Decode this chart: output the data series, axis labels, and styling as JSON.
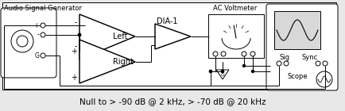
{
  "bg_color": "#e8e8e8",
  "line_color": "#000000",
  "white": "#ffffff",
  "title_text": "Audio Signal Generator",
  "voltmeter_label": "AC Voltmeter",
  "dia_label": "DIA-1",
  "left_label": "Left",
  "right_label": "Right",
  "sig_label": "Sig",
  "sync_label": "Sync",
  "scope_label": "Scope",
  "caption": "Null to > -90 dB @ 2 kHz, > -70 dB @ 20 kHz",
  "caption_fontsize": 7.5,
  "label_fontsize": 7,
  "small_fontsize": 6,
  "tiny_fontsize": 5.5
}
